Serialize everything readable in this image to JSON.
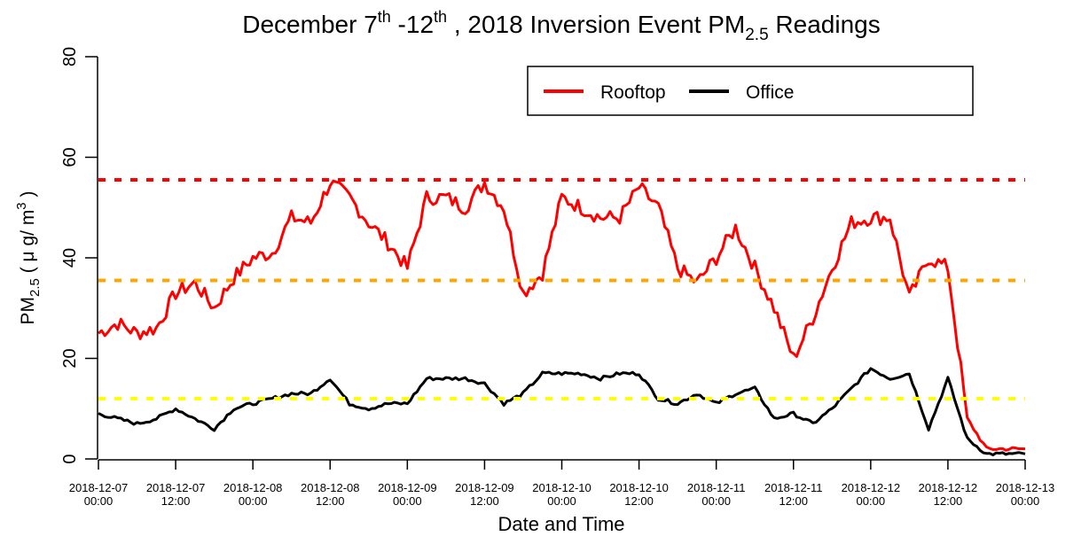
{
  "chart_data": {
    "type": "line",
    "title": {
      "main": "December 7",
      "sup1": "th",
      "mid": " -12",
      "sup2": "th",
      "rest": " , 2018 Inversion Event PM",
      "sub": "2.5",
      "end": " Readings"
    },
    "xlabel": "Date and Time",
    "ylabel": {
      "main": "PM",
      "sub": "2.5",
      "unit": " ( μ g/ m",
      "sup": "3",
      "close": " )"
    },
    "ylim": [
      0,
      80
    ],
    "yticks": [
      0,
      20,
      40,
      60,
      80
    ],
    "xlim": [
      "2018-12-07 00:00",
      "2018-12-13 00:00"
    ],
    "xticks": [
      [
        "2018-12-07",
        "00:00"
      ],
      [
        "2018-12-07",
        "12:00"
      ],
      [
        "2018-12-08",
        "00:00"
      ],
      [
        "2018-12-08",
        "12:00"
      ],
      [
        "2018-12-09",
        "00:00"
      ],
      [
        "2018-12-09",
        "12:00"
      ],
      [
        "2018-12-10",
        "00:00"
      ],
      [
        "2018-12-10",
        "12:00"
      ],
      [
        "2018-12-11",
        "00:00"
      ],
      [
        "2018-12-11",
        "12:00"
      ],
      [
        "2018-12-12",
        "00:00"
      ],
      [
        "2018-12-12",
        "12:00"
      ],
      [
        "2018-12-13",
        "00:00"
      ]
    ],
    "x_interval_hours": 3,
    "legend": {
      "placement": "top-right",
      "entries": [
        "Rooftop",
        "Office"
      ]
    },
    "series": [
      {
        "name": "Rooftop",
        "color": "#ff0000",
        "values": [
          25,
          27,
          25,
          26,
          33,
          35,
          30,
          36,
          40,
          41,
          48,
          47,
          55,
          52,
          47,
          43,
          38,
          52,
          52,
          50,
          55,
          50,
          33,
          37,
          52,
          50,
          48,
          48,
          54,
          50,
          38,
          35,
          40,
          46,
          38,
          30,
          20,
          28,
          38,
          47,
          48,
          48,
          32,
          40,
          38,
          8,
          2,
          2,
          2
        ]
      },
      {
        "name": "Office",
        "color": "#000000",
        "values": [
          9,
          8,
          7,
          8,
          10,
          8,
          6,
          10,
          11,
          12,
          13,
          13,
          16,
          11,
          10,
          11,
          11,
          16,
          16,
          16,
          15,
          11,
          13,
          17,
          17,
          17,
          16,
          17,
          17,
          12,
          11,
          13,
          11,
          13,
          14,
          8,
          9,
          7,
          10,
          14,
          18,
          16,
          17,
          6,
          16,
          4,
          1,
          1,
          1
        ]
      }
    ],
    "reference_lines": [
      {
        "value": 55.5,
        "color": "#ff0000",
        "style": "dashed"
      },
      {
        "value": 35.5,
        "color": "#ffa500",
        "style": "dashed"
      },
      {
        "value": 12,
        "color": "#ffff00",
        "style": "dashed"
      }
    ],
    "grid": false
  }
}
